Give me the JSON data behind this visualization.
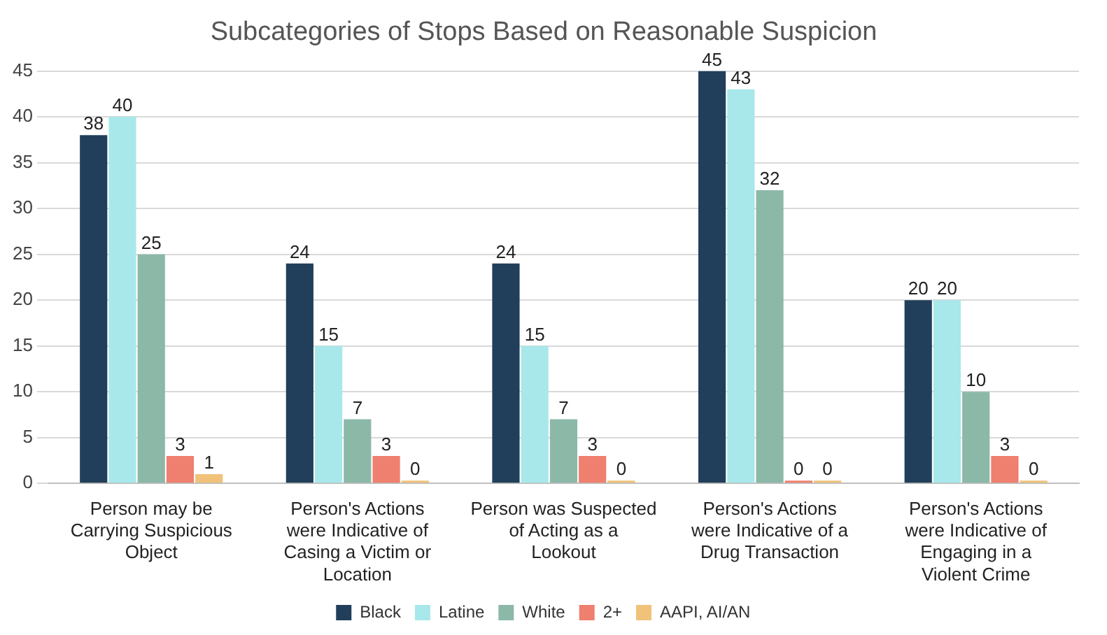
{
  "chart_data": {
    "type": "bar",
    "title": "Subcategories of Stops Based on Reasonable Suspicion",
    "categories": [
      "Person may be Carrying Suspicious Object",
      "Person's Actions were Indicative of Casing a Victim or Location",
      "Person was Suspected of Acting as a Lookout",
      "Person's Actions were Indicative of a Drug Transaction",
      "Person's Actions were Indicative of Engaging in a Violent Crime"
    ],
    "series": [
      {
        "name": "Black",
        "color": "#213f5a",
        "values": [
          38,
          24,
          24,
          45,
          20
        ]
      },
      {
        "name": "Latine",
        "color": "#a8e8ea",
        "values": [
          40,
          15,
          15,
          43,
          20
        ]
      },
      {
        "name": "White",
        "color": "#8cb8a8",
        "values": [
          25,
          7,
          7,
          32,
          10
        ]
      },
      {
        "name": "2+",
        "color": "#ef7f6e",
        "values": [
          3,
          3,
          3,
          0,
          3
        ]
      },
      {
        "name": "AAPI, AI/AN",
        "color": "#f0c27a",
        "values": [
          1,
          0,
          0,
          0,
          0
        ]
      }
    ],
    "ylim": [
      0,
      45
    ],
    "yticks": [
      0,
      5,
      10,
      15,
      20,
      25,
      30,
      35,
      40,
      45
    ],
    "grid": "y",
    "legend": "bottom",
    "data_labels": true
  }
}
